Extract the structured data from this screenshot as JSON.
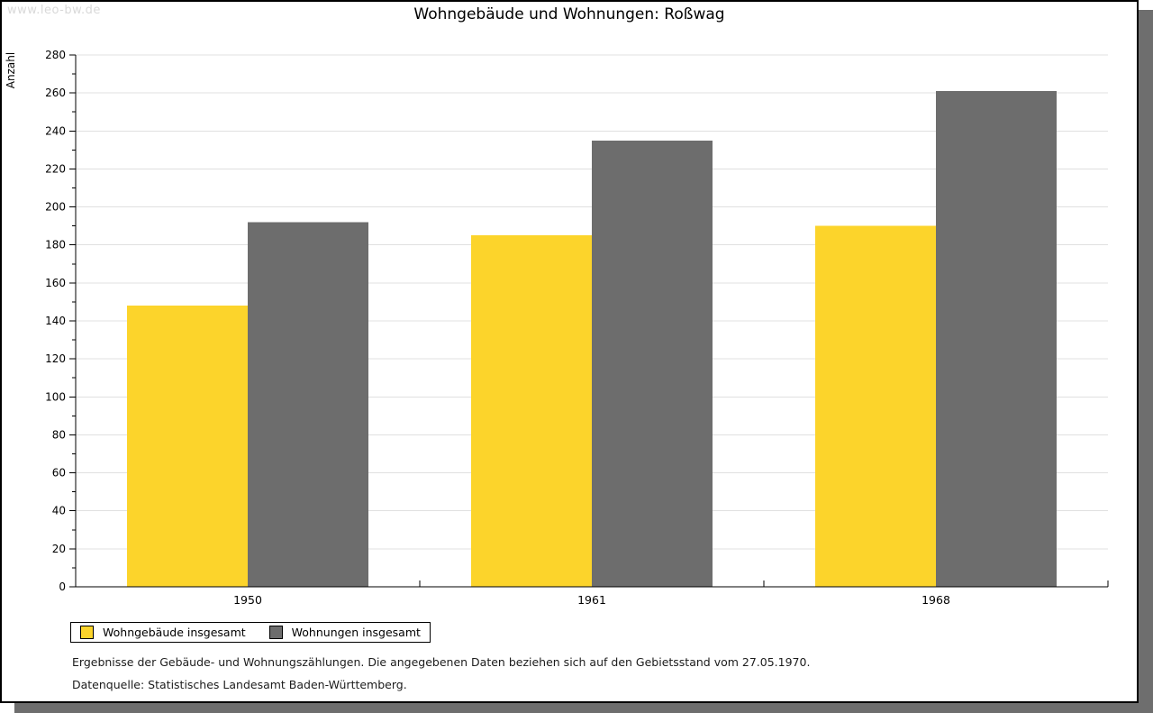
{
  "watermark": "www.leo-bw.de",
  "title": "Wohngebäude und Wohnungen: Roßwag",
  "legend": [
    {
      "label": "Wohngebäude insgesamt",
      "color": "#fcd42b"
    },
    {
      "label": "Wohnungen insgesamt",
      "color": "#6d6d6d"
    }
  ],
  "footer": {
    "line1": "Ergebnisse der Gebäude- und Wohnungszählungen. Die angegebenen Daten beziehen sich auf den Gebietsstand vom 27.05.1970.",
    "line2": "Datenquelle: Statistisches Landesamt Baden-Württemberg."
  },
  "chart_data": {
    "type": "bar",
    "title": "Wohngebäude und Wohnungen: Roßwag",
    "categories": [
      "1950",
      "1961",
      "1968"
    ],
    "series": [
      {
        "name": "Wohngebäude insgesamt",
        "color": "#fcd42b",
        "values": [
          148,
          185,
          190
        ]
      },
      {
        "name": "Wohnungen insgesamt",
        "color": "#6d6d6d",
        "values": [
          192,
          235,
          261
        ]
      }
    ],
    "xlabel": "",
    "ylabel": "Anzahl",
    "ylim": [
      0,
      280
    ],
    "ytick_step": 20,
    "ytick_minor_step": 10,
    "grid": true,
    "legend_position": "bottom-left",
    "colors": {
      "axis": "#000000",
      "gridline": "#e0e0e0",
      "tick_label": "#000000",
      "shadow": "#6e6e6e",
      "watermark": "#d9d9d9"
    }
  }
}
